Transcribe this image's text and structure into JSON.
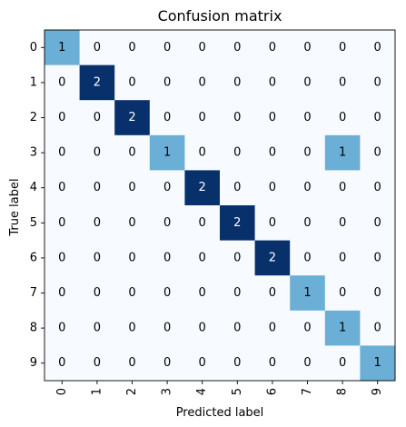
{
  "chart_data": {
    "type": "heatmap",
    "title": "Confusion matrix",
    "xlabel": "Predicted label",
    "ylabel": "True label",
    "x_categories": [
      "0",
      "1",
      "2",
      "3",
      "4",
      "5",
      "6",
      "7",
      "8",
      "9"
    ],
    "y_categories": [
      "0",
      "1",
      "2",
      "3",
      "4",
      "5",
      "6",
      "7",
      "8",
      "9"
    ],
    "values": [
      [
        1,
        0,
        0,
        0,
        0,
        0,
        0,
        0,
        0,
        0
      ],
      [
        0,
        2,
        0,
        0,
        0,
        0,
        0,
        0,
        0,
        0
      ],
      [
        0,
        0,
        2,
        0,
        0,
        0,
        0,
        0,
        0,
        0
      ],
      [
        0,
        0,
        0,
        1,
        0,
        0,
        0,
        0,
        1,
        0
      ],
      [
        0,
        0,
        0,
        0,
        2,
        0,
        0,
        0,
        0,
        0
      ],
      [
        0,
        0,
        0,
        0,
        0,
        2,
        0,
        0,
        0,
        0
      ],
      [
        0,
        0,
        0,
        0,
        0,
        0,
        2,
        0,
        0,
        0
      ],
      [
        0,
        0,
        0,
        0,
        0,
        0,
        0,
        1,
        0,
        0
      ],
      [
        0,
        0,
        0,
        0,
        0,
        0,
        0,
        0,
        1,
        0
      ],
      [
        0,
        0,
        0,
        0,
        0,
        0,
        0,
        0,
        0,
        1
      ]
    ],
    "colormap": "Blues",
    "color_scale": {
      "min": 0,
      "max": 2,
      "colors": [
        "#f7fbff",
        "#6baed6",
        "#08306b"
      ]
    },
    "grid": false,
    "x_tick_rotation": 90
  }
}
